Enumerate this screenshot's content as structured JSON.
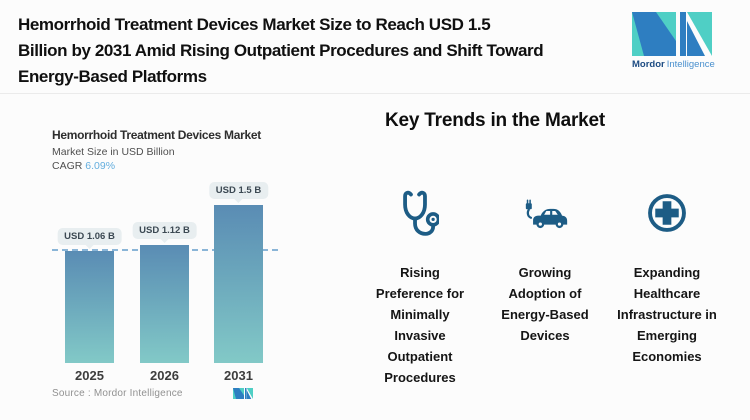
{
  "header": {
    "title_lines": [
      "Hemorrhoid Treatment Devices Market Size to Reach USD 1.5",
      "Billion by 2031 Amid Rising Outpatient Procedures and Shift Toward",
      "Energy-Based Platforms"
    ],
    "brand": {
      "name_bold": "Mordor",
      "name_light": "Intelligence"
    }
  },
  "chart_data": {
    "type": "bar",
    "title": "Hemorrhoid Treatment Devices Market",
    "subtitle": "Market Size in USD Billion",
    "cagr_label": "CAGR",
    "cagr_value": "6.09%",
    "categories": [
      "2025",
      "2026",
      "2031"
    ],
    "values": [
      1.06,
      1.12,
      1.5
    ],
    "value_labels": [
      "USD 1.06 B",
      "USD 1.12 B",
      "USD 1.5 B"
    ],
    "ylim": [
      0,
      1.5
    ],
    "reference_line": {
      "value": 1.06,
      "style": "dashed"
    },
    "grid": false,
    "legend": "none",
    "source": "Source :  Mordor Intelligence"
  },
  "trends": {
    "heading": "Key Trends in the Market",
    "items": [
      {
        "icon": "stethoscope-icon",
        "label": "Rising Preference for Minimally Invasive Outpatient Procedures"
      },
      {
        "icon": "electric-car-icon",
        "label": "Growing Adoption of Energy-Based Devices"
      },
      {
        "icon": "medical-cross-circle-icon",
        "label": "Expanding Healthcare Infrastructure in Emerging Economies"
      }
    ]
  },
  "colors": {
    "logo_teal": "#4FCFC5",
    "logo_blue": "#2E7EC1",
    "brand_text_dark": "#1C4B82",
    "brand_text_light": "#4A90CE",
    "icon_blue": "#1D5C85",
    "cagr_highlight": "#64AEDE",
    "bar_gradient_top": "#5A8CB4",
    "bar_gradient_bottom": "#82C9C7",
    "dashed_line": "#8AB5D7",
    "badge_bg": "#E8EEF0"
  }
}
